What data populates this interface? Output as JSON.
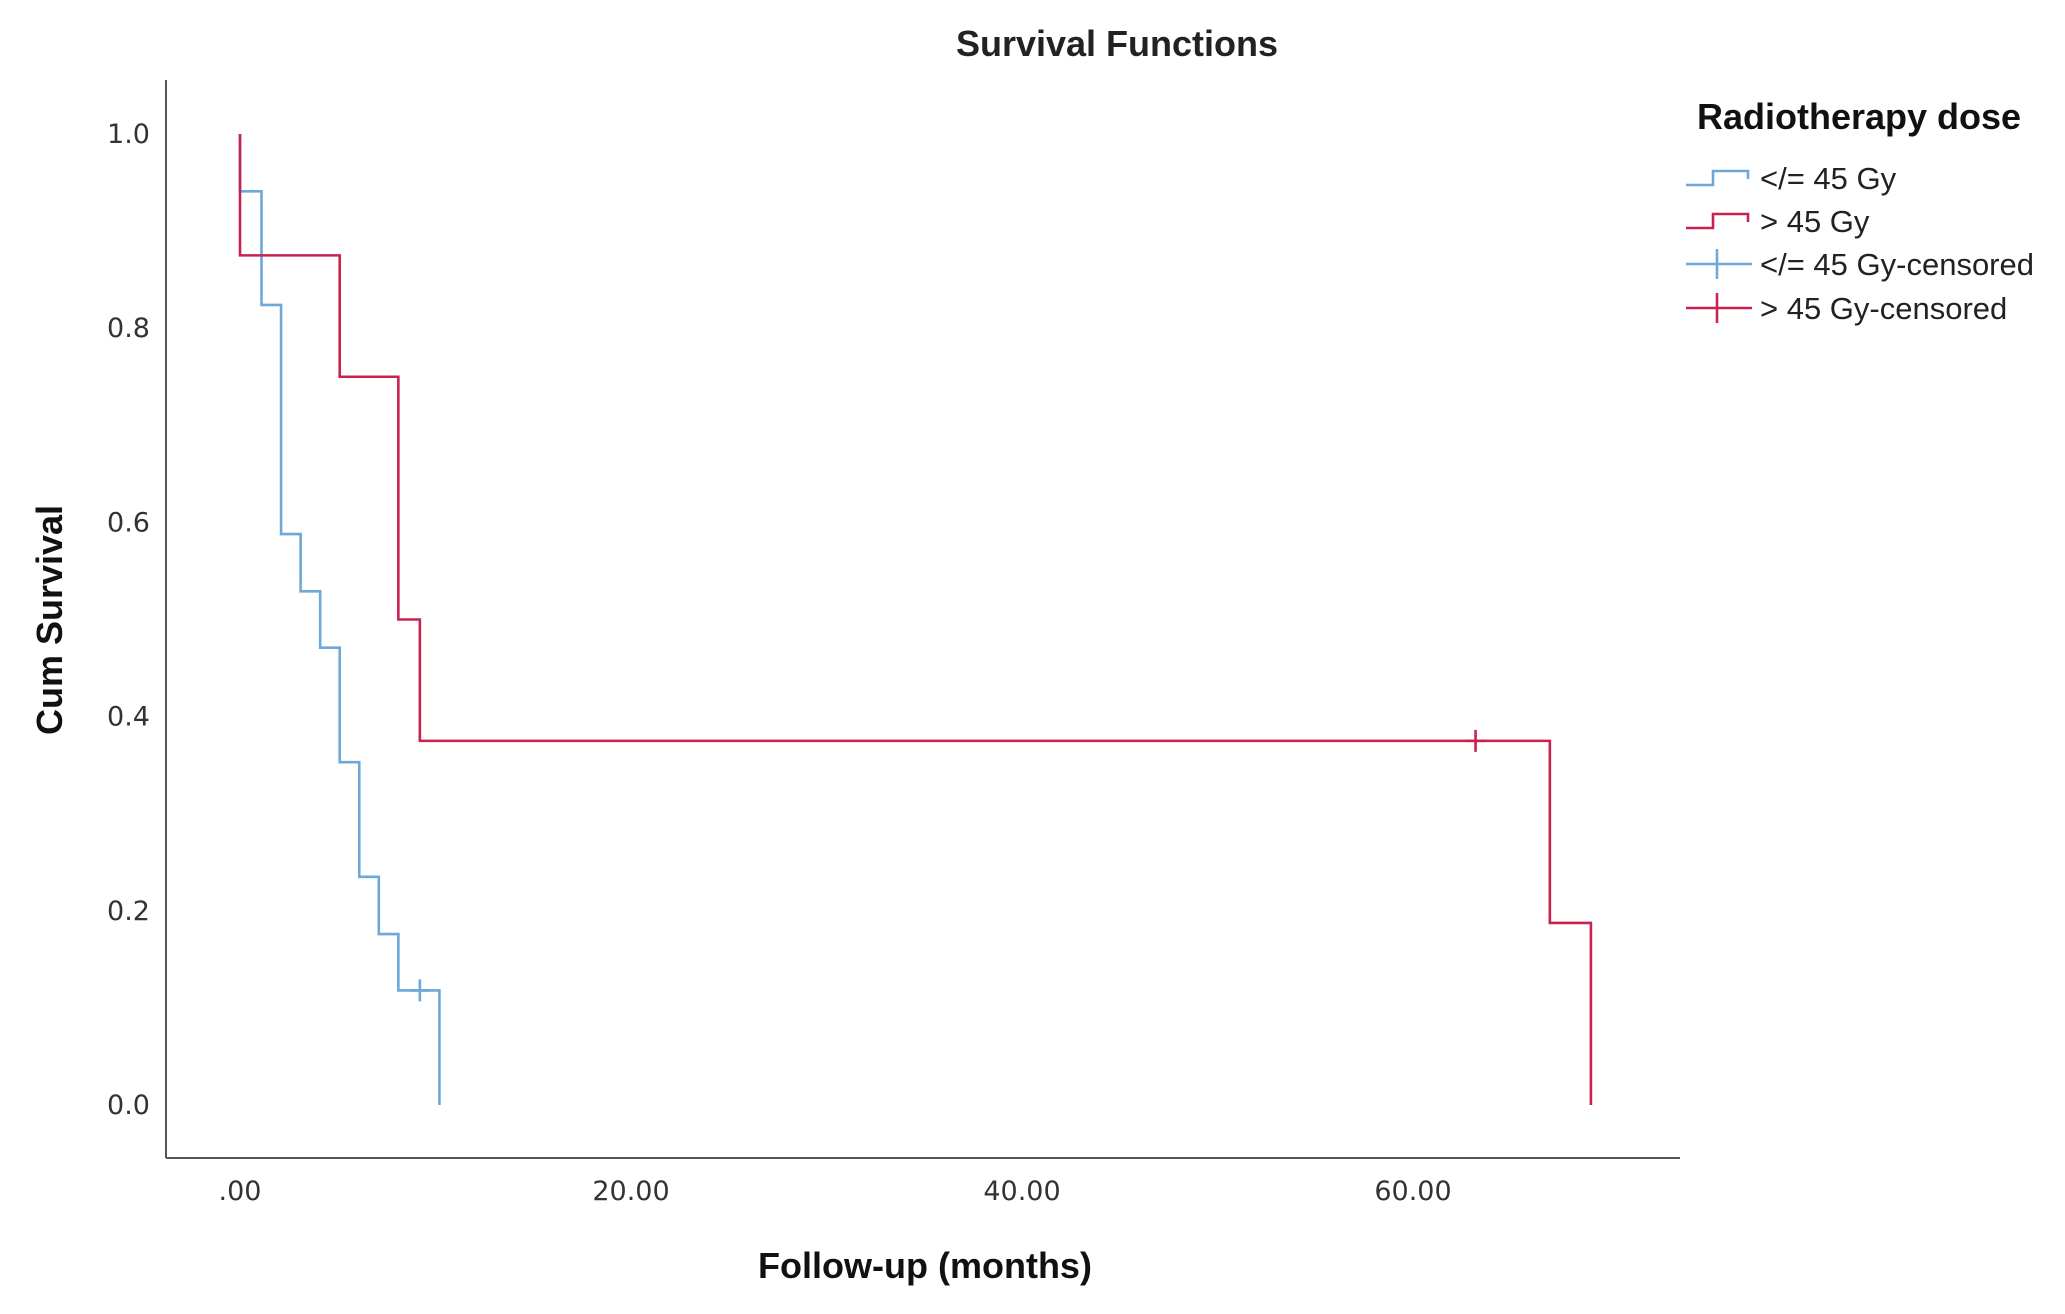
{
  "chart_data": {
    "type": "line",
    "subtype": "kaplan-meier-step",
    "title": "Survival Functions",
    "xlabel": "Follow-up (months)",
    "ylabel": "Cum Survival",
    "xlim": [
      -4,
      62
    ],
    "ylim": [
      -0.055,
      1.06
    ],
    "x_ticks": [
      0,
      20,
      40,
      60
    ],
    "x_tick_labels": [
      ".00",
      "20.00",
      "40.00",
      "60.00"
    ],
    "y_ticks": [
      0.0,
      0.2,
      0.4,
      0.6,
      0.8,
      1.0
    ],
    "y_tick_labels": [
      "0.0",
      "0.2",
      "0.4",
      "0.6",
      "0.8",
      "1.0"
    ],
    "grid": false,
    "legend": {
      "title": "Radiotherapy dose",
      "placement": "top-right",
      "entries": [
        {
          "label": "</= 45 Gy",
          "kind": "step",
          "color": "#6ea8d8"
        },
        {
          "label": "> 45 Gy",
          "kind": "step",
          "color": "#c8234f"
        },
        {
          "label": "</= 45 Gy-censored",
          "kind": "censor",
          "color": "#6ea8d8"
        },
        {
          "label": "> 45 Gy-censored",
          "kind": "censor",
          "color": "#c8234f"
        }
      ]
    },
    "series": [
      {
        "name": "</= 45 Gy",
        "color": "#6ea8d8",
        "steps": [
          {
            "x": 0.0,
            "y": 1.0
          },
          {
            "x": 0.0,
            "y": 0.941
          },
          {
            "x": 1.1,
            "y": 0.824
          },
          {
            "x": 2.1,
            "y": 0.588
          },
          {
            "x": 3.1,
            "y": 0.529
          },
          {
            "x": 4.1,
            "y": 0.471
          },
          {
            "x": 5.1,
            "y": 0.353
          },
          {
            "x": 6.1,
            "y": 0.235
          },
          {
            "x": 7.1,
            "y": 0.176
          },
          {
            "x": 8.1,
            "y": 0.118
          },
          {
            "x": 10.2,
            "y": 0.0
          }
        ],
        "censored": [
          {
            "x": 9.2,
            "y": 0.118
          }
        ]
      },
      {
        "name": "> 45 Gy",
        "color": "#c8234f",
        "steps": [
          {
            "x": 0.0,
            "y": 1.0
          },
          {
            "x": 0.0,
            "y": 0.875
          },
          {
            "x": 5.1,
            "y": 0.75
          },
          {
            "x": 8.1,
            "y": 0.5
          },
          {
            "x": 9.2,
            "y": 0.375
          },
          {
            "x": 67.0,
            "y": 0.1875
          },
          {
            "x": 69.1,
            "y": 0.0
          }
        ],
        "censored": [
          {
            "x": 63.2,
            "y": 0.375
          }
        ]
      }
    ]
  }
}
